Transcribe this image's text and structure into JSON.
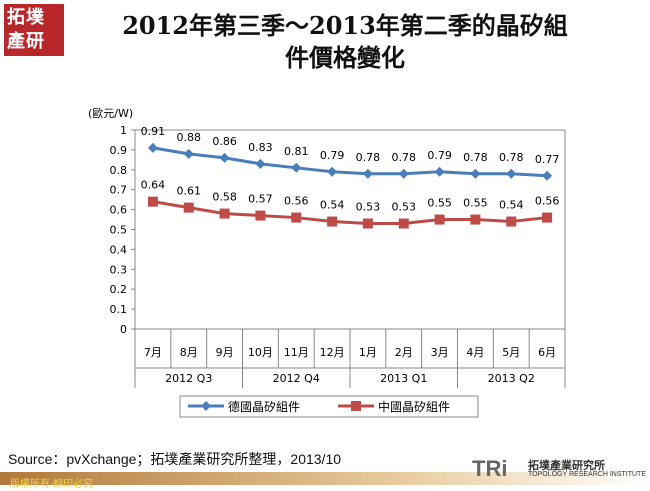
{
  "logo": {
    "text": "拓墣產研"
  },
  "title": {
    "line1": "2012年第三季～2013年第二季的晶矽組",
    "line2": "件價格變化"
  },
  "chart_data": {
    "type": "line",
    "ylabel": "(歐元/W)",
    "ylim": [
      0,
      1
    ],
    "yticks": [
      "0",
      "0.1",
      "0.2",
      "0.3",
      "0.4",
      "0.5",
      "0.6",
      "0.7",
      "0.8",
      "0.9",
      "1"
    ],
    "categories": [
      "7月",
      "8月",
      "9月",
      "10月",
      "11月",
      "12月",
      "1月",
      "2月",
      "3月",
      "4月",
      "5月",
      "6月"
    ],
    "groups": [
      "2012 Q3",
      "2012 Q4",
      "2013 Q1",
      "2013 Q2"
    ],
    "series": [
      {
        "name": "德國晶矽組件",
        "color": "#4a7ebb",
        "marker": "diamond",
        "values": [
          0.91,
          0.88,
          0.86,
          0.83,
          0.81,
          0.79,
          0.78,
          0.78,
          0.79,
          0.78,
          0.78,
          0.77
        ]
      },
      {
        "name": "中國晶矽組件",
        "color": "#be4b48",
        "marker": "square",
        "values": [
          0.64,
          0.61,
          0.58,
          0.57,
          0.56,
          0.54,
          0.53,
          0.53,
          0.55,
          0.55,
          0.54,
          0.56
        ]
      }
    ],
    "legend": "bottom"
  },
  "source": "Source：pvXchange；拓墣產業研究所整理，2013/10",
  "footer": {
    "copyright": "版權所有‧翻印必究",
    "brand_short": "TRi",
    "brand_cn": "拓墣產業研究所",
    "brand_en": "TOPOLOGY RESEARCH INSTITUTE"
  }
}
